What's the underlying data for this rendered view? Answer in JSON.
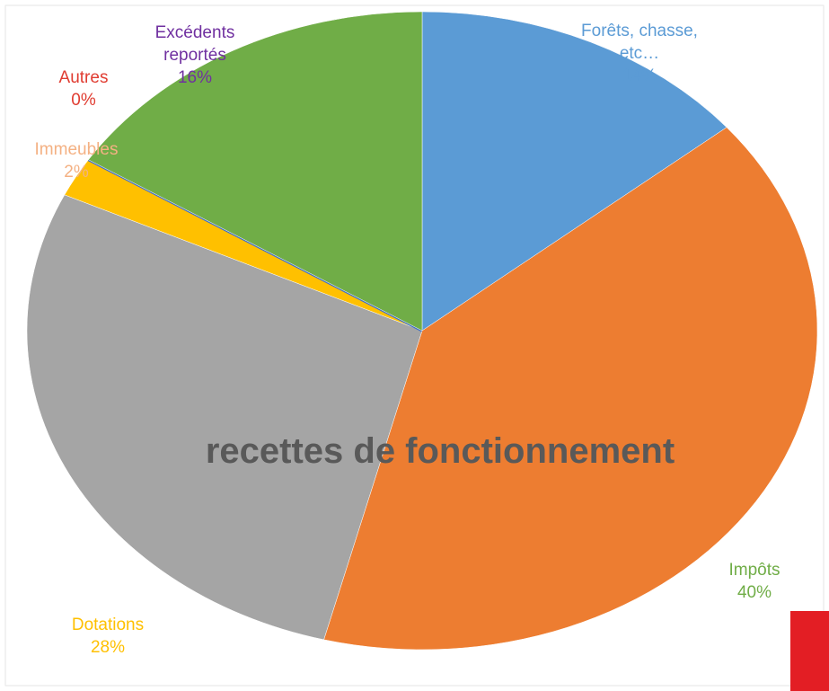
{
  "chart_data": {
    "type": "pie",
    "title": "recettes de fonctionnement",
    "categories": [
      "Forêts, chasse, etc…",
      "Impôts",
      "Dotations",
      "Immeubles",
      "Autres",
      "Excédents reportés"
    ],
    "values": [
      14,
      40,
      28,
      2,
      0,
      16
    ],
    "value_labels": [
      "14%",
      "40%",
      "28%",
      "2%",
      "0%",
      "16%"
    ],
    "colors": [
      "#5b9bd5",
      "#ed7d31",
      "#a5a5a5",
      "#ffc000",
      "#4472c4",
      "#70ad47"
    ],
    "label_colors": [
      "#5b9bd5",
      "#70ad47",
      "#ffc000",
      "#f4b183",
      "#e03c31",
      "#7030a0"
    ]
  }
}
